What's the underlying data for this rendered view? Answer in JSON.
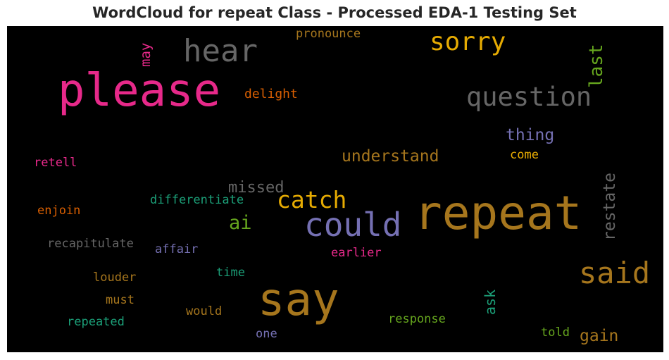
{
  "title": "WordCloud for repeat Class - Processed EDA-1 Testing Set",
  "colors": {
    "pink": "#e7298a",
    "gray": "#666666",
    "gold": "#e6ab02",
    "green": "#66a61e",
    "orange": "#d95f02",
    "purple": "#7570b3",
    "brown": "#a6761d",
    "teal": "#1b9e77"
  },
  "words": {
    "please": "please",
    "hear": "hear",
    "may": "may",
    "pronounce": "pronounce",
    "sorry": "sorry",
    "last": "last",
    "question": "question",
    "delight": "delight",
    "thing": "thing",
    "retell": "retell",
    "understand": "understand",
    "come": "come",
    "missed": "missed",
    "catch": "catch",
    "differentiate": "differentiate",
    "enjoin": "enjoin",
    "could": "could",
    "ai": "ai",
    "repeat": "repeat",
    "restate": "restate",
    "recapitulate": "recapitulate",
    "affair": "affair",
    "earlier": "earlier",
    "time": "time",
    "louder": "louder",
    "said": "said",
    "say": "say",
    "must": "must",
    "ask": "ask",
    "would": "would",
    "repeated": "repeated",
    "response": "response",
    "one": "one",
    "told": "told",
    "gain": "gain"
  }
}
